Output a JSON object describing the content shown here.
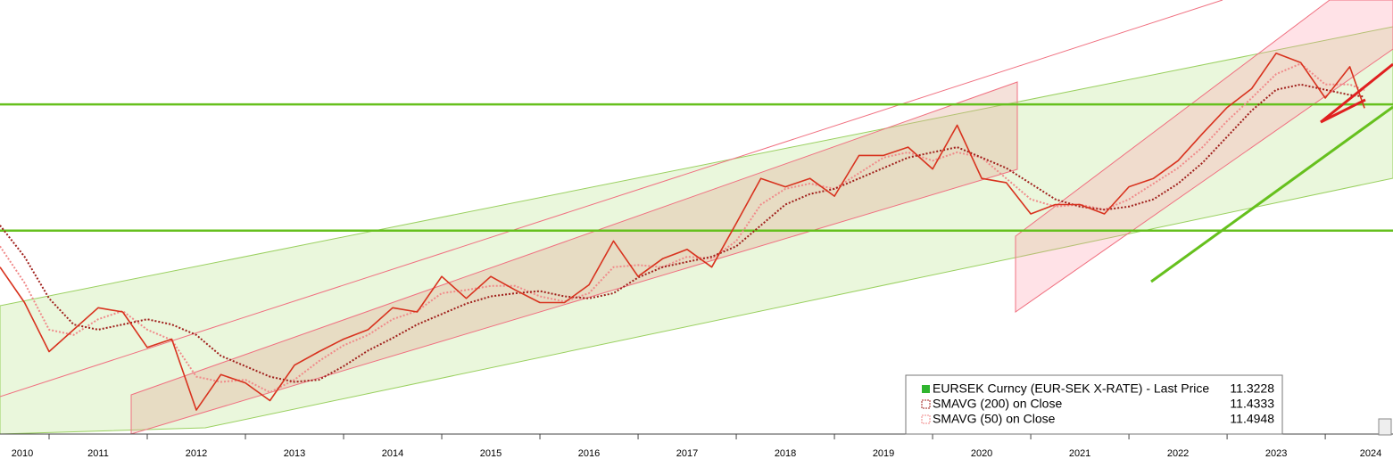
{
  "chart_data": {
    "type": "line",
    "x": [
      2010.5,
      2010.75,
      2011,
      2011.25,
      2011.5,
      2011.75,
      2012,
      2012.25,
      2012.5,
      2012.75,
      2013,
      2013.25,
      2013.5,
      2013.75,
      2014,
      2014.25,
      2014.5,
      2014.75,
      2015,
      2015.25,
      2015.5,
      2015.75,
      2016,
      2016.25,
      2016.5,
      2016.75,
      2017,
      2017.25,
      2017.5,
      2017.75,
      2018,
      2018.25,
      2018.5,
      2018.75,
      2019,
      2019.25,
      2019.5,
      2019.75,
      2020,
      2020.25,
      2020.5,
      2020.75,
      2021,
      2021.25,
      2021.5,
      2021.75,
      2022,
      2022.25,
      2022.5,
      2022.75,
      2023,
      2023.25,
      2023.5,
      2023.75,
      2024,
      2024.25,
      2024.4
    ],
    "series": [
      {
        "name": "EURSEK Curncy (EUR-SEK X-RATE) - Last Price",
        "color": "#d8321e",
        "values": [
          9.8,
          9.46,
          8.99,
          9.2,
          9.41,
          9.37,
          9.03,
          9.11,
          8.43,
          8.77,
          8.69,
          8.52,
          8.86,
          8.99,
          9.11,
          9.2,
          9.41,
          9.37,
          9.71,
          9.5,
          9.71,
          9.58,
          9.46,
          9.46,
          9.63,
          10.05,
          9.71,
          9.88,
          9.97,
          9.8,
          10.22,
          10.65,
          10.57,
          10.65,
          10.48,
          10.87,
          10.87,
          10.95,
          10.74,
          11.16,
          10.65,
          10.61,
          10.31,
          10.4,
          10.4,
          10.31,
          10.57,
          10.65,
          10.82,
          11.08,
          11.33,
          11.51,
          11.85,
          11.76,
          11.42,
          11.72,
          11.3228
        ]
      },
      {
        "name": "SMAVG (200)  on Close",
        "color": "#a0201c",
        "values": [
          10.2,
          9.9,
          9.5,
          9.25,
          9.2,
          9.25,
          9.3,
          9.25,
          9.15,
          8.95,
          8.85,
          8.75,
          8.7,
          8.72,
          8.85,
          9.0,
          9.12,
          9.25,
          9.35,
          9.45,
          9.52,
          9.55,
          9.57,
          9.52,
          9.5,
          9.55,
          9.7,
          9.8,
          9.85,
          9.9,
          10.0,
          10.2,
          10.4,
          10.5,
          10.55,
          10.65,
          10.75,
          10.85,
          10.9,
          10.95,
          10.85,
          10.75,
          10.6,
          10.45,
          10.38,
          10.35,
          10.38,
          10.45,
          10.6,
          10.8,
          11.05,
          11.3,
          11.5,
          11.55,
          11.5,
          11.45,
          11.4333
        ]
      },
      {
        "name": "SMAVG (50)  on Close",
        "color": "#f08a8a",
        "values": [
          10.0,
          9.65,
          9.2,
          9.15,
          9.3,
          9.38,
          9.2,
          9.1,
          8.75,
          8.7,
          8.72,
          8.6,
          8.72,
          8.9,
          9.05,
          9.15,
          9.3,
          9.38,
          9.55,
          9.58,
          9.62,
          9.62,
          9.52,
          9.47,
          9.55,
          9.8,
          9.82,
          9.8,
          9.9,
          9.88,
          10.05,
          10.4,
          10.55,
          10.6,
          10.55,
          10.7,
          10.85,
          10.9,
          10.82,
          10.9,
          10.85,
          10.65,
          10.45,
          10.38,
          10.4,
          10.35,
          10.45,
          10.6,
          10.75,
          10.95,
          11.2,
          11.42,
          11.65,
          11.75,
          11.55,
          11.55,
          11.4948
        ]
      }
    ],
    "xlim": [
      2010.5,
      2024.69
    ],
    "xticks": [
      2010,
      2011,
      2012,
      2013,
      2014,
      2015,
      2016,
      2017,
      2018,
      2019,
      2020,
      2021,
      2022,
      2023,
      2024
    ],
    "ylim": [
      8.2,
      12.36
    ],
    "reference_lines": [
      {
        "value": 11.36,
        "color": "#66c01e"
      },
      {
        "value": 10.15,
        "color": "#66c01e"
      }
    ]
  }
}
